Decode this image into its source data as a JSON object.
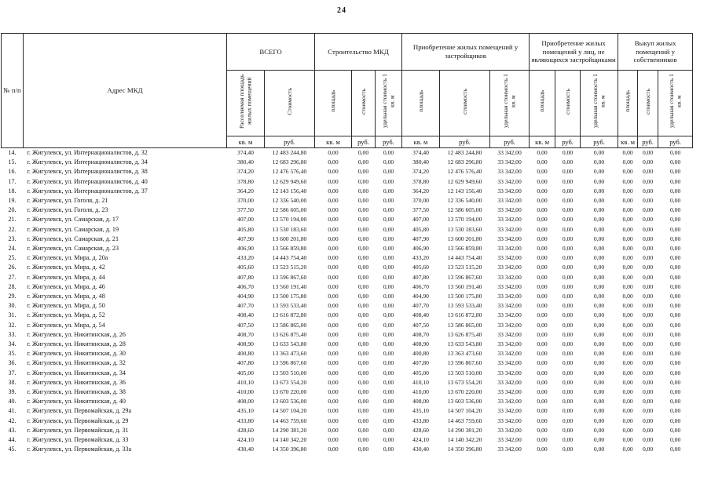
{
  "page": {
    "number": "24"
  },
  "table": {
    "headers": {
      "row_number": "№ п/п",
      "address": "Адрес МКД"
    },
    "units": {
      "area": "кв. м",
      "currency": "руб."
    },
    "groups": [
      {
        "label": "ВСЕГО",
        "sub": [
          "Расселяемая площадь жилых помещений",
          "Стоимость"
        ]
      },
      {
        "label": "Строительство МКД",
        "sub": [
          "площадь",
          "стоимость",
          "удельная стоимость 1 кв. м"
        ]
      },
      {
        "label": "Приобретение жилых помещений у застройщиков",
        "sub": [
          "площадь",
          "стоимость",
          "удельная стоимость 1 кв. м"
        ]
      },
      {
        "label": "Приобретение жилых помещений у лиц, не являющихся застройщиками",
        "sub": [
          "площадь",
          "стоимость",
          "удельная стоимость 1 кв. м"
        ]
      },
      {
        "label": "Выкуп жилых помещений у собственников",
        "sub": [
          "площадь",
          "стоимость",
          "удельная стоимость 1 кв. м"
        ]
      }
    ],
    "constants": {
      "zero": "0,00",
      "developer_unit_cost": "33 342,00"
    },
    "rows": [
      {
        "num": "14.",
        "address": "г. Жигулевск, ул. Интернационалистов, д. 32",
        "area": "374,40",
        "cost": "12 483 244,80"
      },
      {
        "num": "15.",
        "address": "г. Жигулевск, ул. Интернационалистов, д. 34",
        "area": "380,40",
        "cost": "12 683 296,80"
      },
      {
        "num": "16.",
        "address": "г. Жигулевск, ул. Интернационалистов, д. 38",
        "area": "374,20",
        "cost": "12 476 576,40"
      },
      {
        "num": "17.",
        "address": "г. Жигулевск, ул. Интернационалистов, д. 40",
        "area": "378,80",
        "cost": "12 629 949,60"
      },
      {
        "num": "18.",
        "address": "г. Жигулевск, ул. Интернационалистов, д. 37",
        "area": "364,20",
        "cost": "12 143 156,40"
      },
      {
        "num": "19.",
        "address": "г. Жигулевск, ул. Гоголя, д. 21",
        "area": "370,00",
        "cost": "12 336 540,00"
      },
      {
        "num": "20.",
        "address": "г. Жигулевск, ул. Гоголя, д. 23",
        "area": "377,50",
        "cost": "12 586 605,00"
      },
      {
        "num": "21.",
        "address": "г. Жигулевск, ул. Самарская, д. 17",
        "area": "407,00",
        "cost": "13 570 194,00"
      },
      {
        "num": "22.",
        "address": "г. Жигулевск, ул. Самарская, д. 19",
        "area": "405,80",
        "cost": "13 530 183,60"
      },
      {
        "num": "23.",
        "address": "г. Жигулевск, ул. Самарская, д. 21",
        "area": "407,90",
        "cost": "13 600 201,80"
      },
      {
        "num": "24.",
        "address": "г. Жигулевск, ул. Самарская, д. 23",
        "area": "406,90",
        "cost": "13 566 859,80"
      },
      {
        "num": "25.",
        "address": "г. Жигулевск, ул. Мира, д. 20а",
        "area": "433,20",
        "cost": "14 443 754,40"
      },
      {
        "num": "26.",
        "address": "г. Жигулевск, ул. Мира, д. 42",
        "area": "405,60",
        "cost": "13 523 515,20"
      },
      {
        "num": "27.",
        "address": "г. Жигулевск, ул. Мира, д. 44",
        "area": "407,80",
        "cost": "13 596 867,60"
      },
      {
        "num": "28.",
        "address": "г. Жигулевск, ул. Мира, д. 46",
        "area": "406,70",
        "cost": "13 560 191,40"
      },
      {
        "num": "29.",
        "address": "г. Жигулевск, ул. Мира, д. 48",
        "area": "404,90",
        "cost": "13 500 175,80"
      },
      {
        "num": "30.",
        "address": "г. Жигулевск, ул. Мира, д. 50",
        "area": "407,70",
        "cost": "13 593 533,40"
      },
      {
        "num": "31.",
        "address": "г. Жигулевск, ул. Мира, д. 52",
        "area": "408,40",
        "cost": "13 616 872,80"
      },
      {
        "num": "32.",
        "address": "г. Жигулевск, ул. Мира, д. 54",
        "area": "407,50",
        "cost": "13 586 865,00"
      },
      {
        "num": "33.",
        "address": "г. Жигулевск, ул. Никитинская, д. 26",
        "area": "408,70",
        "cost": "13 626 875,40"
      },
      {
        "num": "34.",
        "address": "г. Жигулевск, ул. Никитинская, д. 28",
        "area": "408,90",
        "cost": "13 633 543,80"
      },
      {
        "num": "35.",
        "address": "г. Жигулевск, ул. Никитинская, д. 30",
        "area": "400,80",
        "cost": "13 363 473,60"
      },
      {
        "num": "36.",
        "address": "г. Жигулевск, ул. Никитинская, д. 32",
        "area": "407,80",
        "cost": "13 596 867,60"
      },
      {
        "num": "37.",
        "address": "г. Жигулевск, ул. Никитинская, д. 34",
        "area": "405,00",
        "cost": "13 503 510,00"
      },
      {
        "num": "38.",
        "address": "г. Жигулевск, ул. Никитинская, д. 36",
        "area": "410,10",
        "cost": "13 673 554,20"
      },
      {
        "num": "39.",
        "address": "г. Жигулевск, ул. Никитинская, д. 38",
        "area": "410,00",
        "cost": "13 670 220,00"
      },
      {
        "num": "40.",
        "address": "г. Жигулевск, ул. Никитинская, д. 40",
        "area": "408,00",
        "cost": "13 603 536,00"
      },
      {
        "num": "41.",
        "address": "г. Жигулевск, ул. Первомайская, д. 29а",
        "area": "435,10",
        "cost": "14 507 104,20"
      },
      {
        "num": "42.",
        "address": "г. Жигулевск, ул. Первомайская, д. 29",
        "area": "433,80",
        "cost": "14 463 759,60"
      },
      {
        "num": "43.",
        "address": "г. Жигулевск, ул. Первомайская, д. 31",
        "area": "428,60",
        "cost": "14 290 381,20"
      },
      {
        "num": "44.",
        "address": "г. Жигулевск, ул. Первомайская, д. 33",
        "area": "424,10",
        "cost": "14 140 342,20"
      },
      {
        "num": "45.",
        "address": "г. Жигулевск, ул. Первомайская, д. 33а",
        "area": "430,40",
        "cost": "14 350 396,80"
      }
    ]
  }
}
